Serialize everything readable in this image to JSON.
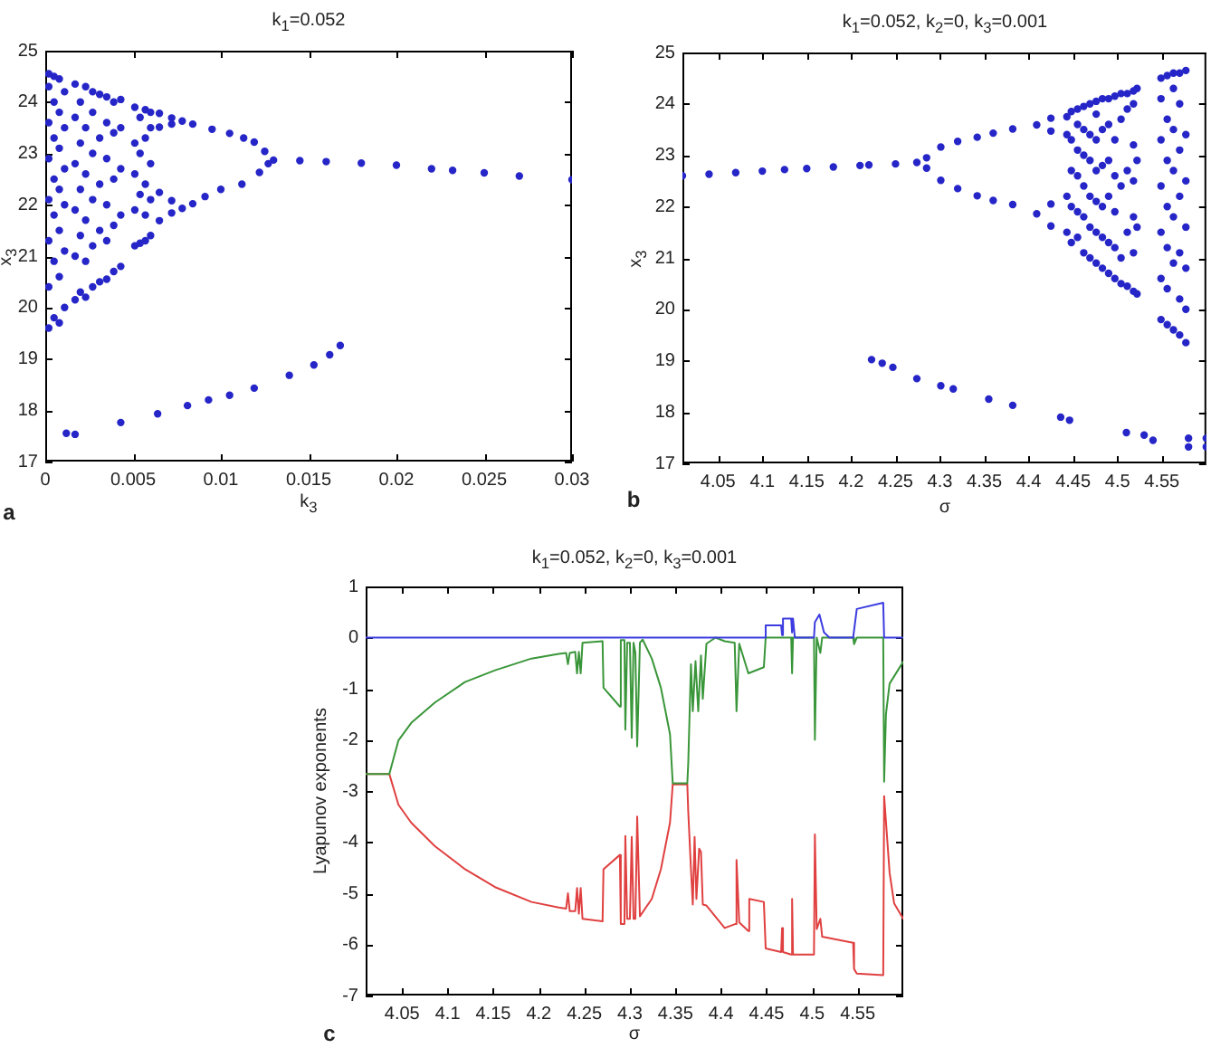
{
  "chart_data": [
    {
      "type": "scatter",
      "title": "k$_{1}$=0.052",
      "xlabel": "k$_{3}$",
      "ylabel": "x$_{3}$",
      "annotations": [
        "a"
      ],
      "marker": "circle",
      "xlim": [
        0,
        0.03
      ],
      "xticks": [
        0,
        0.005,
        0.01,
        0.015,
        0.02,
        0.025,
        0.03
      ],
      "ylim": [
        17,
        25
      ],
      "yticks": [
        17,
        18,
        19,
        20,
        21,
        22,
        23,
        24,
        25
      ],
      "series": [
        {
          "color": "#2626c8",
          "x": [
            0.0002,
            0.0002,
            0.0002,
            0.0002,
            0.0002,
            0.0002,
            0.0002,
            0.0002,
            0.0005,
            0.0005,
            0.0005,
            0.0005,
            0.0005,
            0.0005,
            0.0005,
            0.0008,
            0.0008,
            0.0008,
            0.0008,
            0.0008,
            0.0008,
            0.0008,
            0.0011,
            0.0011,
            0.0011,
            0.0011,
            0.0011,
            0.0011,
            0.0017,
            0.0017,
            0.0017,
            0.0017,
            0.0017,
            0.0017,
            0.002,
            0.002,
            0.002,
            0.002,
            0.002,
            0.0023,
            0.0023,
            0.0023,
            0.0023,
            0.0023,
            0.0023,
            0.0027,
            0.0027,
            0.0027,
            0.0027,
            0.0027,
            0.0027,
            0.0031,
            0.0031,
            0.0031,
            0.0031,
            0.0031,
            0.0035,
            0.0035,
            0.0035,
            0.0035,
            0.0035,
            0.0035,
            0.0039,
            0.0039,
            0.0039,
            0.0039,
            0.0039,
            0.0043,
            0.0043,
            0.0043,
            0.0043,
            0.0043,
            0.0051,
            0.0051,
            0.0051,
            0.0051,
            0.0051,
            0.0054,
            0.0054,
            0.0054,
            0.0054,
            0.0057,
            0.0057,
            0.0057,
            0.0057,
            0.0057,
            0.006,
            0.006,
            0.006,
            0.006,
            0.006,
            0.0065,
            0.0065,
            0.0065,
            0.0065,
            0.0072,
            0.0072,
            0.0072,
            0.0072,
            0.0078,
            0.0078,
            0.0084,
            0.0095,
            0.0105,
            0.0113,
            0.0119,
            0.0125,
            0.0084,
            0.0091,
            0.01,
            0.0112,
            0.0122,
            0.0127,
            0.013,
            0.0145,
            0.016,
            0.018,
            0.02,
            0.022,
            0.0232,
            0.025,
            0.027,
            0.03,
            0.0012,
            0.0017,
            0.0043,
            0.0064,
            0.0081,
            0.0093,
            0.0105,
            0.0119,
            0.0139,
            0.0153,
            0.0162,
            0.0168
          ],
          "values": [
            19.6,
            20.4,
            21.3,
            22.1,
            22.9,
            23.6,
            24.3,
            24.55,
            19.8,
            20.9,
            21.8,
            22.5,
            23.3,
            24,
            24.5,
            19.7,
            20.6,
            21.5,
            22.3,
            23.1,
            23.8,
            24.45,
            20,
            21.1,
            22,
            22.7,
            23.5,
            24.2,
            20.15,
            21,
            21.9,
            22.8,
            23.7,
            24.35,
            20.3,
            21.4,
            22.3,
            23.2,
            24,
            20.2,
            20.9,
            21.7,
            22.6,
            23.5,
            24.3,
            20.4,
            21.2,
            22.1,
            23,
            23.8,
            24.2,
            20.5,
            21.5,
            22.4,
            23.3,
            24.15,
            20.55,
            21.3,
            22,
            22.9,
            23.6,
            24.1,
            20.7,
            21.6,
            22.5,
            23.4,
            24,
            20.8,
            21.8,
            22.7,
            23.5,
            24.05,
            21.2,
            21.9,
            22.6,
            23.2,
            23.9,
            21.25,
            22.2,
            23,
            23.7,
            21.3,
            21.8,
            22.4,
            23.3,
            23.85,
            21.4,
            22.1,
            22.8,
            23.5,
            23.8,
            23.78,
            23.51,
            22.24,
            21.69,
            23.69,
            23.57,
            22.08,
            21.84,
            23.63,
            21.93,
            23.57,
            23.47,
            23.39,
            23.3,
            23.22,
            23.04,
            22.02,
            22.16,
            22.3,
            22.4,
            22.63,
            22.8,
            22.87,
            22.86,
            22.84,
            22.81,
            22.77,
            22.7,
            22.67,
            22.62,
            22.56,
            22.49,
            17.55,
            17.53,
            17.76,
            17.93,
            18.09,
            18.2,
            18.29,
            18.43,
            18.68,
            18.88,
            19.08,
            19.26
          ]
        }
      ]
    },
    {
      "type": "scatter",
      "title": "k$_{1}$=0.052, k$_{2}$=0, k$_{3}$=0.001",
      "xlabel": "σ",
      "ylabel": "x$_{3}$",
      "annotations": [
        "b"
      ],
      "marker": "circle",
      "xlim": [
        4.01,
        4.6
      ],
      "xticks": [
        4.05,
        4.1,
        4.15,
        4.2,
        4.25,
        4.3,
        4.35,
        4.4,
        4.45,
        4.5,
        4.55
      ],
      "ylim": [
        17,
        25
      ],
      "yticks": [
        17,
        18,
        19,
        20,
        21,
        22,
        23,
        24,
        25
      ],
      "series": [
        {
          "color": "#2626c8",
          "x": [
            4.01,
            4.04,
            4.07,
            4.1,
            4.125,
            4.15,
            4.18,
            4.21,
            4.22,
            4.25,
            4.274,
            4.285,
            4.301,
            4.32,
            4.342,
            4.36,
            4.382,
            4.409,
            4.285,
            4.301,
            4.32,
            4.342,
            4.36,
            4.382,
            4.409,
            4.425,
            4.425,
            4.425,
            4.425,
            4.443,
            4.443,
            4.443,
            4.443,
            4.448,
            4.448,
            4.448,
            4.448,
            4.448,
            4.455,
            4.455,
            4.455,
            4.455,
            4.455,
            4.455,
            4.462,
            4.462,
            4.462,
            4.462,
            4.462,
            4.462,
            4.469,
            4.469,
            4.469,
            4.469,
            4.469,
            4.469,
            4.476,
            4.476,
            4.476,
            4.476,
            4.476,
            4.476,
            4.476,
            4.483,
            4.483,
            4.483,
            4.483,
            4.483,
            4.483,
            4.49,
            4.49,
            4.49,
            4.49,
            4.49,
            4.49,
            4.497,
            4.497,
            4.497,
            4.497,
            4.497,
            4.497,
            4.504,
            4.504,
            4.504,
            4.504,
            4.504,
            4.511,
            4.511,
            4.511,
            4.511,
            4.511,
            4.518,
            4.518,
            4.518,
            4.518,
            4.518,
            4.518,
            4.518,
            4.522,
            4.522,
            4.522,
            4.522,
            4.549,
            4.549,
            4.549,
            4.549,
            4.549,
            4.549,
            4.549,
            4.556,
            4.556,
            4.556,
            4.556,
            4.556,
            4.556,
            4.556,
            4.563,
            4.563,
            4.563,
            4.563,
            4.563,
            4.563,
            4.563,
            4.57,
            4.57,
            4.57,
            4.57,
            4.57,
            4.57,
            4.57,
            4.577,
            4.577,
            4.577,
            4.577,
            4.577,
            4.577,
            4.577,
            4.223,
            4.235,
            4.247,
            4.274,
            4.301,
            4.315,
            4.355,
            4.382,
            4.436,
            4.446,
            4.51,
            4.53,
            4.54,
            4.58,
            4.6,
            4.58,
            4.6
          ],
          "values": [
            22.6,
            22.63,
            22.66,
            22.69,
            22.72,
            22.74,
            22.77,
            22.8,
            22.81,
            22.83,
            22.86,
            22.95,
            23.16,
            23.27,
            23.35,
            23.43,
            23.51,
            23.59,
            22.75,
            22.51,
            22.35,
            22.21,
            22.12,
            22.04,
            21.86,
            23.72,
            23.47,
            22.05,
            21.62,
            23.75,
            23.4,
            22.2,
            21.5,
            21.3,
            22,
            22.7,
            23.3,
            23.85,
            21.4,
            21.9,
            22.6,
            23.1,
            23.6,
            23.9,
            21.1,
            21.8,
            22.4,
            23,
            23.5,
            23.95,
            21,
            21.6,
            22.2,
            22.9,
            23.4,
            24,
            20.9,
            21.5,
            22.1,
            22.7,
            23.3,
            23.8,
            24.05,
            20.8,
            21.4,
            22,
            22.8,
            23.5,
            24.1,
            20.7,
            21.3,
            22.2,
            22.9,
            23.6,
            24.1,
            20.6,
            21.2,
            21.9,
            22.6,
            23.3,
            24.15,
            20.5,
            21,
            22.4,
            23.7,
            24.2,
            20.45,
            21.5,
            22.7,
            23.9,
            24.2,
            20.35,
            21.1,
            21.8,
            22.5,
            23.2,
            24,
            24.25,
            20.3,
            21.6,
            22.9,
            24.3,
            19.8,
            20.6,
            21.5,
            22.4,
            23.3,
            24.1,
            24.5,
            19.7,
            20.4,
            21.2,
            22,
            22.9,
            23.7,
            24.55,
            19.6,
            20.9,
            21.8,
            22.7,
            23.5,
            24.3,
            24.6,
            19.5,
            20.2,
            21.1,
            22.2,
            23.1,
            24,
            24.6,
            19.35,
            20,
            20.8,
            21.6,
            22.5,
            23.4,
            24.65,
            19.02,
            18.95,
            18.87,
            18.65,
            18.51,
            18.45,
            18.25,
            18.13,
            17.9,
            17.84,
            17.6,
            17.55,
            17.45,
            17.49,
            17.49,
            17.32,
            17.32
          ]
        }
      ]
    },
    {
      "type": "line",
      "title": "k$_{1}$=0.052, k$_{2}$=0, k$_{3}$=0.001",
      "xlabel": "σ",
      "ylabel": "Lyapunov exponents",
      "annotations": [
        "c"
      ],
      "xlim": [
        4.01,
        4.6
      ],
      "xticks": [
        4.05,
        4.1,
        4.15,
        4.2,
        4.25,
        4.3,
        4.35,
        4.4,
        4.45,
        4.5,
        4.55
      ],
      "ylim": [
        -7,
        1
      ],
      "yticks": [
        -7,
        -6,
        -5,
        -4,
        -3,
        -2,
        -1,
        0,
        1
      ],
      "series": [
        {
          "color": "#3c3ce0",
          "x": [
            4.01,
            4.448,
            4.449,
            4.466,
            4.467,
            4.468,
            4.477,
            4.478,
            4.479,
            4.481,
            4.502,
            4.503,
            4.508,
            4.513,
            4.519,
            4.545,
            4.549,
            4.578,
            4.579,
            4.6
          ],
          "values": [
            0,
            0,
            0.24,
            0.24,
            0.05,
            0.37,
            0.37,
            0.1,
            0.37,
            0,
            0,
            0.3,
            0.45,
            0.1,
            0,
            0,
            0.56,
            0.68,
            0,
            0
          ]
        },
        {
          "color": "#3a963a",
          "x": [
            4.01,
            4.036,
            4.046,
            4.06,
            4.086,
            4.119,
            4.152,
            4.192,
            4.222,
            4.23,
            4.232,
            4.234,
            4.24,
            4.242,
            4.244,
            4.246,
            4.248,
            4.27,
            4.271,
            4.289,
            4.29,
            4.294,
            4.295,
            4.297,
            4.3,
            4.302,
            4.304,
            4.306,
            4.308,
            4.311,
            4.314,
            4.324,
            4.334,
            4.344,
            4.347,
            4.363,
            4.364,
            4.367,
            4.369,
            4.372,
            4.375,
            4.378,
            4.38,
            4.384,
            4.394,
            4.404,
            4.415,
            4.417,
            4.42,
            4.43,
            4.447,
            4.449,
            4.477,
            4.478,
            4.479,
            4.502,
            4.503,
            4.505,
            4.509,
            4.511,
            4.545,
            4.546,
            4.549,
            4.578,
            4.579,
            4.581,
            4.585,
            4.6
          ],
          "values": [
            -2.67,
            -2.67,
            -2.01,
            -1.67,
            -1.27,
            -0.87,
            -0.64,
            -0.41,
            -0.32,
            -0.3,
            -0.52,
            -0.3,
            -0.28,
            -0.7,
            -0.28,
            -0.7,
            -0.1,
            -0.07,
            -0.98,
            -1.35,
            -0.05,
            -0.05,
            -1.8,
            -0.1,
            -0.1,
            -1.96,
            -0.1,
            -0.3,
            -2.13,
            -0.1,
            -0.04,
            -0.41,
            -0.98,
            -1.89,
            -2.85,
            -2.85,
            -2.47,
            -0.52,
            -1.44,
            -0.46,
            -1.44,
            -0.35,
            -1.2,
            -0.12,
            0,
            -0.07,
            -0.1,
            -1.44,
            -0.12,
            -0.7,
            -0.58,
            0,
            0,
            -0.7,
            0,
            0,
            -2,
            0,
            -0.3,
            0,
            0,
            -0.13,
            0,
            0,
            -2.82,
            -1.5,
            -0.9,
            -0.47
          ]
        },
        {
          "color": "#e04040",
          "x": [
            4.01,
            4.036,
            4.046,
            4.06,
            4.086,
            4.119,
            4.152,
            4.192,
            4.222,
            4.23,
            4.232,
            4.234,
            4.24,
            4.242,
            4.244,
            4.246,
            4.248,
            4.27,
            4.271,
            4.289,
            4.29,
            4.294,
            4.295,
            4.297,
            4.3,
            4.302,
            4.304,
            4.306,
            4.308,
            4.311,
            4.324,
            4.334,
            4.344,
            4.347,
            4.363,
            4.364,
            4.367,
            4.369,
            4.371,
            4.373,
            4.376,
            4.378,
            4.38,
            4.384,
            4.404,
            4.416,
            4.417,
            4.42,
            4.43,
            4.431,
            4.447,
            4.449,
            4.466,
            4.467,
            4.468,
            4.477,
            4.478,
            4.479,
            4.502,
            4.503,
            4.505,
            4.509,
            4.511,
            4.545,
            4.546,
            4.549,
            4.578,
            4.579,
            4.585,
            4.59,
            4.6
          ],
          "values": [
            -2.67,
            -2.67,
            -3.27,
            -3.62,
            -4.08,
            -4.53,
            -4.88,
            -5.17,
            -5.28,
            -5.3,
            -5,
            -5.35,
            -5.35,
            -4.9,
            -5.4,
            -4.9,
            -5.5,
            -5.55,
            -4.53,
            -4.25,
            -5.6,
            -5.6,
            -3.88,
            -5.5,
            -5.5,
            -3.9,
            -5.5,
            -5.5,
            -3.5,
            -5.45,
            -5.11,
            -4.53,
            -3.62,
            -2.87,
            -2.87,
            -3.39,
            -4.53,
            -5.22,
            -3.9,
            -5.11,
            -4.13,
            -4.19,
            -5.22,
            -5.24,
            -5.68,
            -5.6,
            -4.35,
            -5.57,
            -5.74,
            -5.11,
            -5.17,
            -6.08,
            -6.15,
            -5.68,
            -6.15,
            -6.2,
            -5.11,
            -6.2,
            -6.2,
            -3.85,
            -5.7,
            -5.5,
            -5.85,
            -5.97,
            -6.48,
            -6.57,
            -6.6,
            -3.1,
            -4.6,
            -5.2,
            -5.5
          ]
        }
      ]
    }
  ]
}
